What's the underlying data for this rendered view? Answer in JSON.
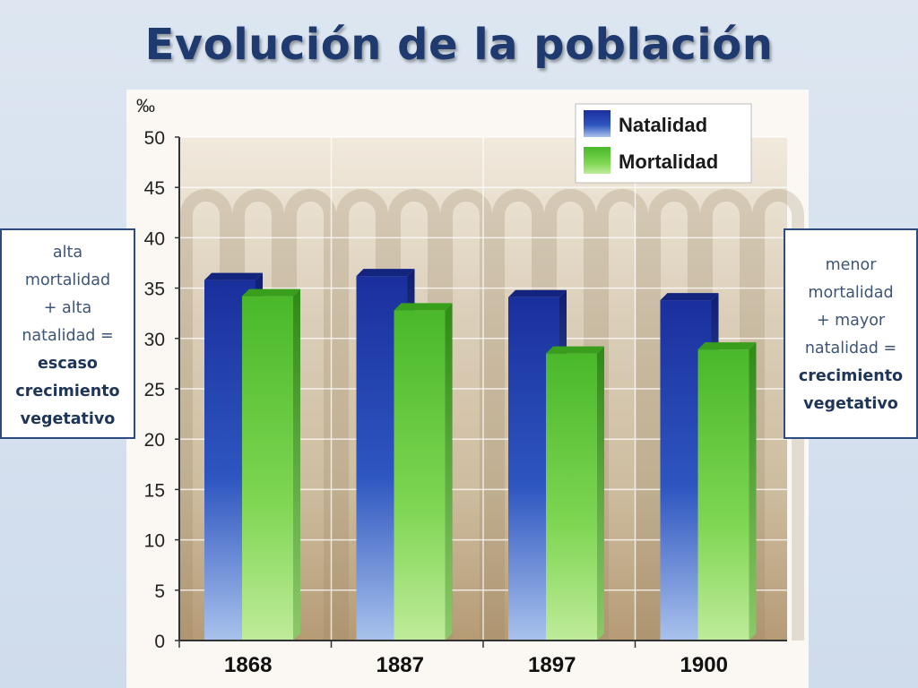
{
  "slide": {
    "title": "Evolución de la población"
  },
  "notes": {
    "left": {
      "lines": [
        "alta",
        "mortalidad",
        "+ alta",
        "natalidad ="
      ],
      "bold_lines": [
        "escaso",
        "crecimiento",
        "vegetativo"
      ]
    },
    "right": {
      "lines": [
        "menor",
        "mortalidad",
        "+ mayor",
        "natalidad ="
      ],
      "bold_lines": [
        "crecimiento",
        "vegetativo"
      ]
    }
  },
  "chart_data": {
    "type": "bar",
    "title": "",
    "xlabel": "",
    "ylabel": "‰",
    "categories": [
      "1868",
      "1887",
      "1897",
      "1900"
    ],
    "series": [
      {
        "name": "Natalidad",
        "values": [
          35.8,
          36.2,
          34.1,
          33.8
        ],
        "color": "#1f3ea8"
      },
      {
        "name": "Mortalidad",
        "values": [
          34.2,
          32.8,
          28.5,
          28.9
        ],
        "color": "#5cc536"
      }
    ],
    "ylim": [
      0,
      50
    ],
    "yticks": [
      0,
      5,
      10,
      15,
      20,
      25,
      30,
      35,
      40,
      45,
      50
    ],
    "grid": true,
    "legend_position": "top-right"
  }
}
